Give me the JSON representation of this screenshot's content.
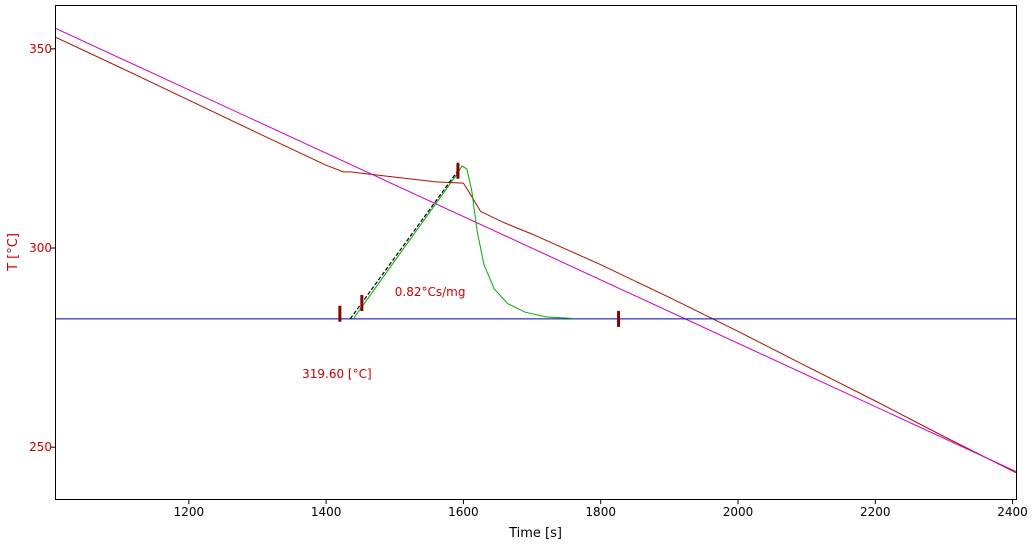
{
  "chart_data": {
    "type": "line",
    "xlabel": "Time [s]",
    "ylabel": "T  [°C]",
    "xlim": [
      1005,
      2405
    ],
    "ylim": [
      237,
      361
    ],
    "xticks": [
      1200,
      1400,
      1600,
      1800,
      2000,
      2200,
      2400
    ],
    "yticks": [
      250,
      300,
      350
    ],
    "grid": false,
    "annotations": [
      {
        "text": "0.82°Cs/mg",
        "x": 1500,
        "y": 288,
        "color": "#cc0000"
      },
      {
        "text": "319.60 [°C]",
        "x": 1365,
        "y": 267.4,
        "color": "#cc0000"
      }
    ],
    "markers": [
      {
        "x": 1420,
        "y": 283.5
      },
      {
        "x": 1452,
        "y": 286.2
      },
      {
        "x": 1592,
        "y": 319.4
      },
      {
        "x": 1826,
        "y": 282.2
      }
    ],
    "series": [
      {
        "color": "#aa1100",
        "x": [
          1005,
          1100,
          1200,
          1300,
          1400,
          1425,
          1435,
          1500,
          1560,
          1600,
          1610,
          1625,
          1660,
          1700,
          1800,
          1900,
          2000,
          2100,
          2200,
          2300,
          2405
        ],
        "y": [
          353,
          345.3,
          337.1,
          328.9,
          320.8,
          319.1,
          319.1,
          317.8,
          316.6,
          316.3,
          313.5,
          309.2,
          306.3,
          303.5,
          295.8,
          287.6,
          279.1,
          270.3,
          261.6,
          252.7,
          243.6
        ]
      },
      {
        "color": "#cc00cc",
        "x": [
          1005,
          2405
        ],
        "y": [
          355.2,
          243.9
        ]
      },
      {
        "color": "#0000aa",
        "x": [
          1005,
          2405
        ],
        "y": [
          282.2,
          282.2
        ]
      },
      {
        "color": "#00aa00",
        "x": [
          1440,
          1500,
          1560,
          1590,
          1598,
          1605,
          1612,
          1620,
          1630,
          1645,
          1665,
          1690,
          1720,
          1760
        ],
        "y": [
          282.3,
          296.8,
          311.2,
          318.4,
          320.6,
          319.8,
          314.5,
          304.1,
          295.8,
          289.7,
          286.0,
          283.9,
          282.7,
          282.3
        ]
      },
      {
        "color": "#000000",
        "dashed": true,
        "x": [
          1435,
          1592
        ],
        "y": [
          282.2,
          319.4
        ]
      }
    ]
  }
}
